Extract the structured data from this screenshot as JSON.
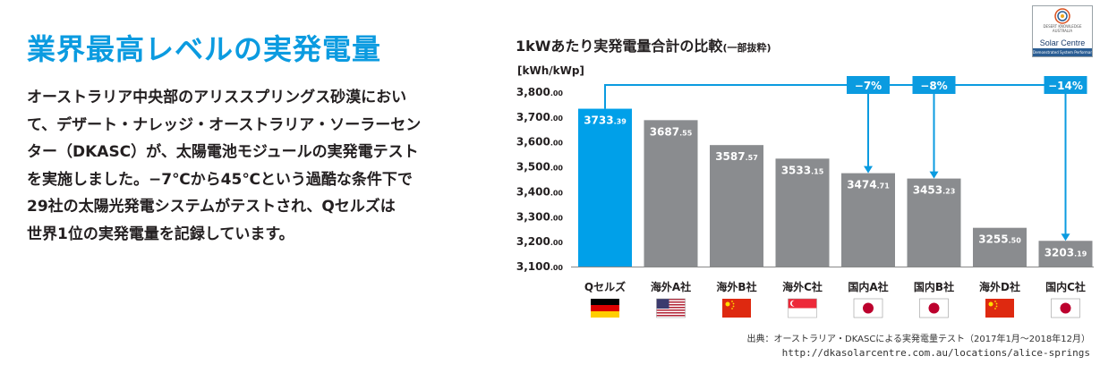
{
  "headline": "業界最高レベルの実発電量",
  "body_lines": [
    "オーストラリア中央部のアリススプリングス砂漠におい",
    "て、デザート・ナレッジ・オーストラリア・ソーラーセン",
    "ター（DKASC）が、太陽電池モジュールの実発電テスト",
    "を実施しました。−7℃から45℃という過酷な条件下で",
    "29社の太陽光発電システムがテストされ、Qセルズは",
    "世界1位の実発電量を記録しています。"
  ],
  "logo": {
    "small_text": "DESERT KNOWLEDGE AUSTRALIA",
    "main_text": "Solar Centre",
    "band_text": "Demonstrated System Performance"
  },
  "source": "出典：オーストラリア・DKASCによる実発電量テスト（2017年1月〜2018年12月）",
  "url": "http://dkasolarcentre.com.au/locations/alice-springs",
  "colors": {
    "accent": "#0b9be0",
    "highlight_bar": "#00a0e9",
    "bar": "#8a8c8f",
    "axis_text": "#231f20"
  },
  "chart_data": {
    "type": "bar",
    "title": "1kWあたり実発電量合計の比較",
    "title_note": "(一部抜粋)",
    "ylabel": "[kWh/kWp]",
    "ylim": [
      3100,
      3800
    ],
    "yticks": [
      3100,
      3200,
      3300,
      3400,
      3500,
      3600,
      3700,
      3800
    ],
    "ytick_labels": [
      "3,100.00",
      "3,200.00",
      "3,300.00",
      "3,400.00",
      "3,500.00",
      "3,600.00",
      "3,700.00",
      "3,800.00"
    ],
    "categories": [
      "Qセルズ",
      "海外A社",
      "海外B社",
      "海外C社",
      "国内A社",
      "国内B社",
      "海外D社",
      "国内C社"
    ],
    "values": [
      3733.39,
      3687.55,
      3587.57,
      3533.15,
      3474.71,
      3453.23,
      3255.5,
      3203.19
    ],
    "value_labels": [
      "3733.39",
      "3687.55",
      "3587.57",
      "3533.15",
      "3474.71",
      "3453.23",
      "3255.50",
      "3203.19"
    ],
    "highlight_index": 0,
    "flags": [
      "germany-flag-icon",
      "usa-flag-icon",
      "china-flag-icon",
      "singapore-flag-icon",
      "japan-flag-icon",
      "japan-flag-icon",
      "china-flag-icon",
      "japan-flag-icon"
    ],
    "comparisons": [
      {
        "target_index": 4,
        "label": "−7%"
      },
      {
        "target_index": 5,
        "label": "−8%"
      },
      {
        "target_index": 7,
        "label": "−14%"
      }
    ]
  }
}
